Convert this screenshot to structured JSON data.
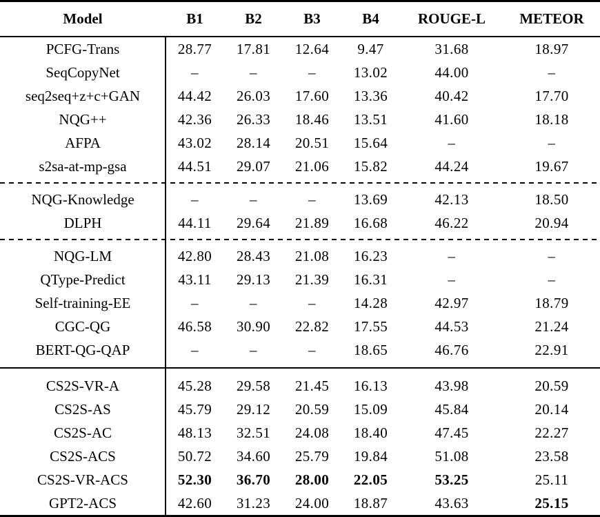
{
  "colors": {
    "text": "#000000",
    "background": "#ffffff",
    "rule": "#000000"
  },
  "table": {
    "columns": [
      "Model",
      "B1",
      "B2",
      "B3",
      "B4",
      "ROUGE-L",
      "METEOR"
    ],
    "missing_marker": "–",
    "separators": [
      "dashed",
      "dashed",
      "solid"
    ],
    "sections": [
      {
        "rows": [
          {
            "model": "PCFG-Trans",
            "values": [
              "28.77",
              "17.81",
              "12.64",
              "9.47",
              "31.68",
              "18.97"
            ],
            "bold": []
          },
          {
            "model": "SeqCopyNet",
            "values": [
              "–",
              "–",
              "–",
              "13.02",
              "44.00",
              "–"
            ],
            "bold": []
          },
          {
            "model": "seq2seq+z+c+GAN",
            "values": [
              "44.42",
              "26.03",
              "17.60",
              "13.36",
              "40.42",
              "17.70"
            ],
            "bold": []
          },
          {
            "model": "NQG++",
            "values": [
              "42.36",
              "26.33",
              "18.46",
              "13.51",
              "41.60",
              "18.18"
            ],
            "bold": []
          },
          {
            "model": "AFPA",
            "values": [
              "43.02",
              "28.14",
              "20.51",
              "15.64",
              "–",
              "–"
            ],
            "bold": []
          },
          {
            "model": "s2sa-at-mp-gsa",
            "values": [
              "44.51",
              "29.07",
              "21.06",
              "15.82",
              "44.24",
              "19.67"
            ],
            "bold": []
          }
        ]
      },
      {
        "rows": [
          {
            "model": "NQG-Knowledge",
            "values": [
              "–",
              "–",
              "–",
              "13.69",
              "42.13",
              "18.50"
            ],
            "bold": []
          },
          {
            "model": "DLPH",
            "values": [
              "44.11",
              "29.64",
              "21.89",
              "16.68",
              "46.22",
              "20.94"
            ],
            "bold": []
          }
        ]
      },
      {
        "rows": [
          {
            "model": "NQG-LM",
            "values": [
              "42.80",
              "28.43",
              "21.08",
              "16.23",
              "–",
              "–"
            ],
            "bold": []
          },
          {
            "model": "QType-Predict",
            "values": [
              "43.11",
              "29.13",
              "21.39",
              "16.31",
              "–",
              "–"
            ],
            "bold": []
          },
          {
            "model": "Self-training-EE",
            "values": [
              "–",
              "–",
              "–",
              "14.28",
              "42.97",
              "18.79"
            ],
            "bold": []
          },
          {
            "model": "CGC-QG",
            "values": [
              "46.58",
              "30.90",
              "22.82",
              "17.55",
              "44.53",
              "21.24"
            ],
            "bold": []
          },
          {
            "model": "BERT-QG-QAP",
            "values": [
              "–",
              "–",
              "–",
              "18.65",
              "46.76",
              "22.91"
            ],
            "bold": []
          }
        ]
      },
      {
        "rows": [
          {
            "model": "CS2S-VR-A",
            "values": [
              "45.28",
              "29.58",
              "21.45",
              "16.13",
              "43.98",
              "20.59"
            ],
            "bold": []
          },
          {
            "model": "CS2S-AS",
            "values": [
              "45.79",
              "29.12",
              "20.59",
              "15.09",
              "45.84",
              "20.14"
            ],
            "bold": []
          },
          {
            "model": "CS2S-AC",
            "values": [
              "48.13",
              "32.51",
              "24.08",
              "18.40",
              "47.45",
              "22.27"
            ],
            "bold": []
          },
          {
            "model": "CS2S-ACS",
            "values": [
              "50.72",
              "34.60",
              "25.79",
              "19.84",
              "51.08",
              "23.58"
            ],
            "bold": []
          },
          {
            "model": "CS2S-VR-ACS",
            "values": [
              "52.30",
              "36.70",
              "28.00",
              "22.05",
              "53.25",
              "25.11"
            ],
            "bold": [
              0,
              1,
              2,
              3,
              4
            ]
          },
          {
            "model": "GPT2-ACS",
            "values": [
              "42.60",
              "31.23",
              "24.00",
              "18.87",
              "43.63",
              "25.15"
            ],
            "bold": [
              5
            ]
          }
        ]
      }
    ]
  }
}
